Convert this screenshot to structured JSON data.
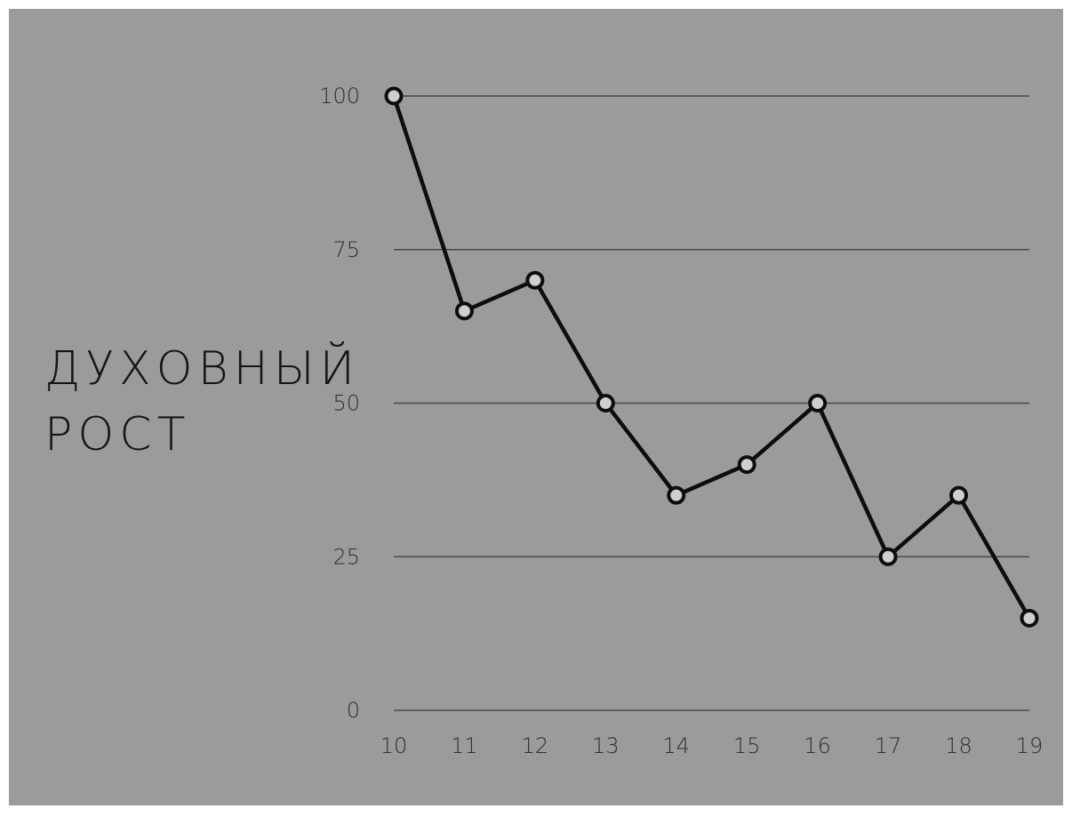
{
  "colors": {
    "background": "#9b9b9d",
    "gridline": "#4a4a4a",
    "line": "#0d0d0d",
    "marker_fill": "#cfcfcf",
    "text": "#2f2f2f",
    "title_text": "#151515"
  },
  "chart_data": {
    "type": "line",
    "title": "",
    "xlabel": "",
    "ylabel": [
      "ДУХОВНЫЙ",
      "РОСТ"
    ],
    "x": [
      10,
      11,
      12,
      13,
      14,
      15,
      16,
      17,
      18,
      19
    ],
    "xticks": [
      "10",
      "11",
      "12",
      "13",
      "14",
      "15",
      "16",
      "17",
      "18",
      "19"
    ],
    "series": [
      {
        "values": [
          100,
          65,
          70,
          50,
          35,
          40,
          50,
          25,
          35,
          15
        ]
      }
    ],
    "yticks": [
      "0",
      "25",
      "50",
      "75",
      "100"
    ],
    "ylim": [
      0,
      100
    ],
    "grid": "horizontal",
    "legend": "none"
  }
}
